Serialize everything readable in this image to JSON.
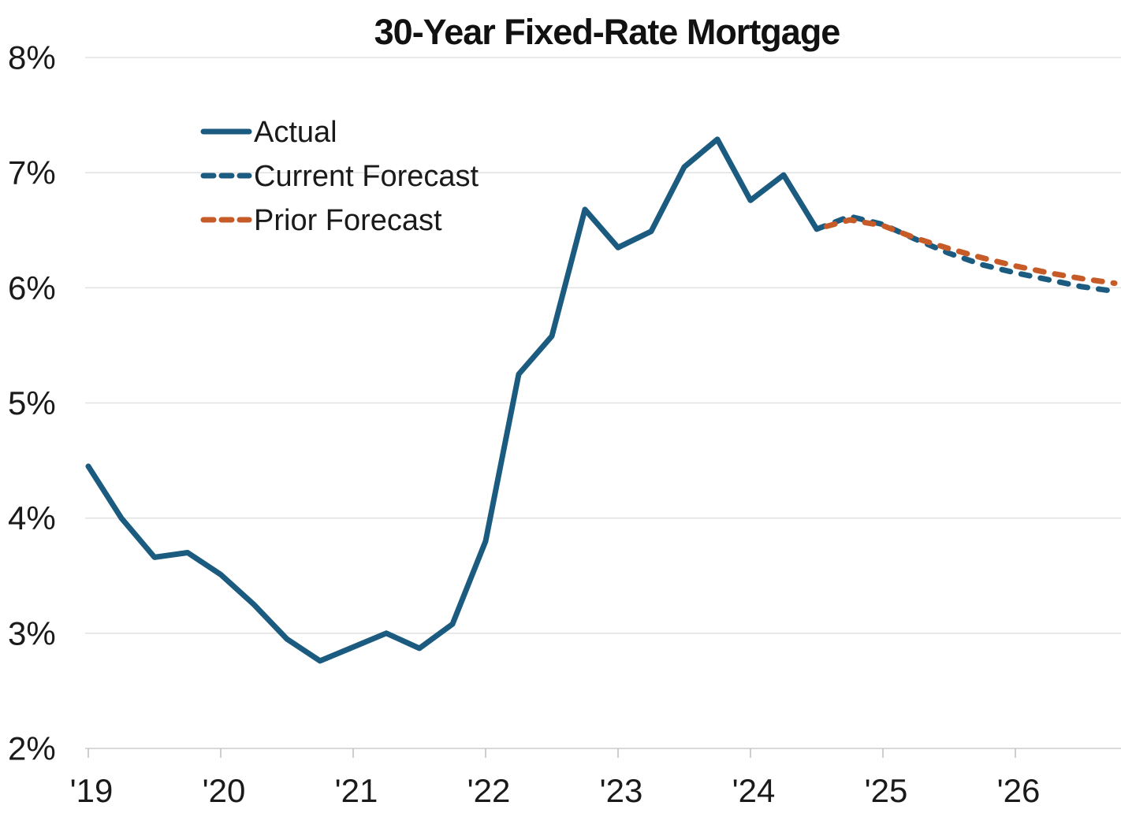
{
  "chart_data": {
    "type": "line",
    "title": "30-Year Fixed-Rate Mortgage",
    "x_start": "2019-Q1",
    "x_interval": "quarter",
    "forecast_start": "2024-Q3",
    "xlabel": "",
    "ylabel": "",
    "ylim": [
      2,
      8
    ],
    "grid": "horizontal",
    "legend_position": "upper-left",
    "x_axis": {
      "tick_labels": [
        "'19",
        "'20",
        "'21",
        "'22",
        "'23",
        "'24",
        "'25",
        "'26"
      ]
    },
    "y_axis": {
      "tick_labels": [
        "8%",
        "7%",
        "6%",
        "5%",
        "4%",
        "3%",
        "2%"
      ],
      "tick_values": [
        8,
        7,
        6,
        5,
        4,
        3,
        2
      ]
    },
    "series": [
      {
        "name": "Actual",
        "style": "solid",
        "color": "#1c5b80",
        "start_quarter_index": 0,
        "values": [
          4.45,
          4.0,
          3.66,
          3.7,
          3.51,
          3.25,
          2.95,
          2.76,
          2.88,
          3.0,
          2.87,
          3.08,
          3.8,
          5.25,
          5.58,
          6.68,
          6.35,
          6.49,
          7.05,
          7.29,
          6.76,
          6.98,
          6.51
        ]
      },
      {
        "name": "Current Forecast",
        "style": "dashed",
        "color": "#1c5b80",
        "start_quarter_index": 22,
        "values": [
          6.51,
          6.62,
          6.55,
          6.42,
          6.3,
          6.2,
          6.13,
          6.07,
          6.01,
          5.97
        ]
      },
      {
        "name": "Prior Forecast",
        "style": "dashed",
        "color": "#c75b28",
        "start_quarter_index": 22,
        "values": [
          6.51,
          6.59,
          6.54,
          6.43,
          6.34,
          6.26,
          6.19,
          6.13,
          6.08,
          6.04
        ]
      }
    ]
  },
  "legend": {
    "items": [
      {
        "label": "Actual",
        "style": "solid",
        "color": "#1c5b80"
      },
      {
        "label": "Current Forecast",
        "style": "dashed",
        "color": "#1c5b80"
      },
      {
        "label": "Prior Forecast",
        "style": "dashed",
        "color": "#c75b28"
      }
    ]
  },
  "colors": {
    "line_blue": "#1c5b80",
    "line_orange": "#c75b28",
    "grid": "#e3e3e3",
    "axis": "#d4d4d4",
    "tick": "#c9c9c9",
    "text": "#1a1a1a"
  }
}
